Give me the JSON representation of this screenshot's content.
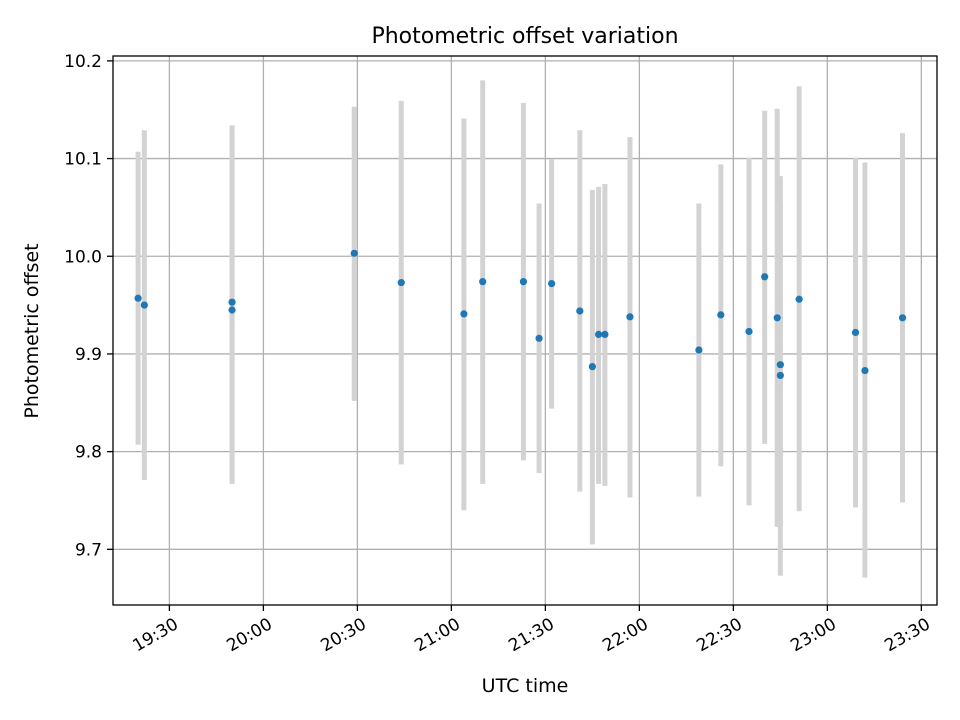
{
  "chart_data": {
    "type": "scatter",
    "title": "Photometric offset variation",
    "xlabel": "UTC time",
    "ylabel": "Photometric offset",
    "x_unit": "time of day (HH:MM UTC)",
    "xlim": [
      "19:12",
      "23:35"
    ],
    "ylim": [
      9.643,
      10.205
    ],
    "grid": true,
    "legend": "none",
    "colors": {
      "points": "#1f77b4",
      "error_bars": "#d3d3d3"
    },
    "x_ticks": [
      "19:30",
      "20:00",
      "20:30",
      "21:00",
      "21:30",
      "22:00",
      "22:30",
      "23:00",
      "23:30"
    ],
    "y_ticks": [
      9.7,
      9.8,
      9.9,
      10.0,
      10.1,
      10.2
    ],
    "y_tick_labels": [
      "9.7",
      "9.8",
      "9.9",
      "10.0",
      "10.1",
      "10.2"
    ],
    "points": [
      {
        "x": "19:20",
        "y": 9.957,
        "y_low": 9.807,
        "y_high": 10.107
      },
      {
        "x": "19:22",
        "y": 9.95,
        "y_low": 9.771,
        "y_high": 10.129
      },
      {
        "x": "19:50",
        "y": 9.953,
        "y_low": 9.772,
        "y_high": 10.134
      },
      {
        "x": "19:50",
        "y": 9.945,
        "y_low": 9.767,
        "y_high": 10.123
      },
      {
        "x": "20:29",
        "y": 10.003,
        "y_low": 9.852,
        "y_high": 10.153
      },
      {
        "x": "20:44",
        "y": 9.973,
        "y_low": 9.787,
        "y_high": 10.159
      },
      {
        "x": "21:04",
        "y": 9.941,
        "y_low": 9.74,
        "y_high": 10.141
      },
      {
        "x": "21:10",
        "y": 9.974,
        "y_low": 9.767,
        "y_high": 10.18
      },
      {
        "x": "21:23",
        "y": 9.974,
        "y_low": 9.791,
        "y_high": 10.157
      },
      {
        "x": "21:28",
        "y": 9.916,
        "y_low": 9.778,
        "y_high": 10.054
      },
      {
        "x": "21:32",
        "y": 9.972,
        "y_low": 9.844,
        "y_high": 10.099
      },
      {
        "x": "21:41",
        "y": 9.944,
        "y_low": 9.759,
        "y_high": 10.129
      },
      {
        "x": "21:45",
        "y": 9.887,
        "y_low": 9.705,
        "y_high": 10.068
      },
      {
        "x": "21:47",
        "y": 9.92,
        "y_low": 9.767,
        "y_high": 10.071
      },
      {
        "x": "21:49",
        "y": 9.92,
        "y_low": 9.765,
        "y_high": 10.074
      },
      {
        "x": "21:57",
        "y": 9.938,
        "y_low": 9.753,
        "y_high": 10.122
      },
      {
        "x": "22:19",
        "y": 9.904,
        "y_low": 9.754,
        "y_high": 10.054
      },
      {
        "x": "22:26",
        "y": 9.94,
        "y_low": 9.785,
        "y_high": 10.094
      },
      {
        "x": "22:35",
        "y": 9.923,
        "y_low": 9.745,
        "y_high": 10.101
      },
      {
        "x": "22:40",
        "y": 9.979,
        "y_low": 9.808,
        "y_high": 10.149
      },
      {
        "x": "22:44",
        "y": 9.937,
        "y_low": 9.723,
        "y_high": 10.151
      },
      {
        "x": "22:45",
        "y": 9.889,
        "y_low": 9.723,
        "y_high": 10.054
      },
      {
        "x": "22:45",
        "y": 9.878,
        "y_low": 9.673,
        "y_high": 10.082
      },
      {
        "x": "22:51",
        "y": 9.956,
        "y_low": 9.739,
        "y_high": 10.174
      },
      {
        "x": "23:09",
        "y": 9.922,
        "y_low": 9.743,
        "y_high": 10.101
      },
      {
        "x": "23:12",
        "y": 9.883,
        "y_low": 9.671,
        "y_high": 10.096
      },
      {
        "x": "23:24",
        "y": 9.937,
        "y_low": 9.748,
        "y_high": 10.126
      }
    ]
  }
}
